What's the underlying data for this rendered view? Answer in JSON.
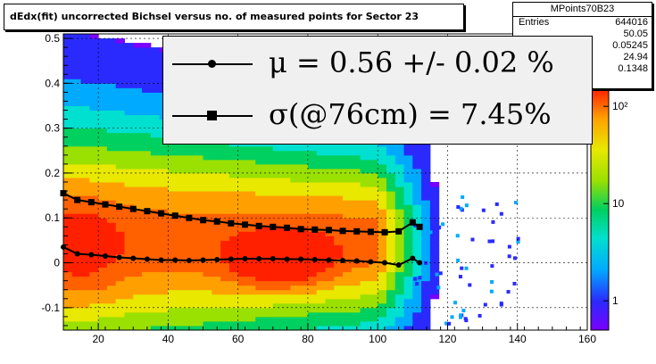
{
  "title": "dEdx(fit) uncorrected Bichsel versus no. of measured points for Sector 23",
  "stats": {
    "name": "MPoints70B23",
    "rows": [
      {
        "key": "Entries",
        "value": "644016"
      },
      {
        "key": "",
        "value": "50.05"
      },
      {
        "key": "",
        "value": "0.05245"
      },
      {
        "key": "",
        "value": "24.94"
      },
      {
        "key": "",
        "value": "0.1348"
      }
    ]
  },
  "legend": [
    {
      "label": "μ  =  0.56 +/-  0.02 %",
      "marker": "circle"
    },
    {
      "label": "σ(@76cm) =  7.45%",
      "marker": "square"
    }
  ],
  "chart_data": {
    "type": "heatmap",
    "title": "dEdx(fit) uncorrected Bichsel versus no. of measured points for Sector 23",
    "xlim": [
      10,
      160
    ],
    "ylim": [
      -0.15,
      0.51
    ],
    "xticks": [
      20,
      40,
      60,
      80,
      100,
      120,
      140,
      160
    ],
    "yticks": [
      -0.1,
      0,
      0.1,
      0.2,
      0.3,
      0.4,
      0.5
    ],
    "ytick_labels": [
      "-0.1",
      "0",
      "0.1",
      "0.2",
      "0.3",
      "0.4",
      "0.5"
    ],
    "colorbar": {
      "scale": "log",
      "tick_labels": [
        "1",
        "10",
        "10²"
      ],
      "tick_values": [
        1,
        10,
        100
      ]
    },
    "grid": true,
    "series": [
      {
        "name": "μ",
        "marker": "circle",
        "x": [
          10,
          14,
          18,
          22,
          26,
          30,
          34,
          38,
          42,
          46,
          50,
          54,
          58,
          62,
          66,
          70,
          74,
          78,
          82,
          86,
          90,
          94,
          98,
          102,
          106,
          110,
          112
        ],
        "y": [
          0.035,
          0.02,
          0.018,
          0.015,
          0.012,
          0.01,
          0.008,
          0.006,
          0.006,
          0.005,
          0.006,
          0.007,
          0.008,
          0.009,
          0.009,
          0.009,
          0.008,
          0.008,
          0.007,
          0.006,
          0.005,
          0.004,
          0.002,
          0.0,
          -0.005,
          0.01,
          0.0
        ]
      },
      {
        "name": "σ(@76cm)",
        "marker": "square",
        "x": [
          10,
          14,
          18,
          22,
          26,
          30,
          34,
          38,
          42,
          46,
          50,
          54,
          58,
          62,
          66,
          70,
          74,
          78,
          82,
          86,
          90,
          94,
          98,
          102,
          106,
          110,
          112
        ],
        "y": [
          0.155,
          0.14,
          0.135,
          0.13,
          0.125,
          0.12,
          0.115,
          0.11,
          0.105,
          0.1,
          0.095,
          0.092,
          0.088,
          0.085,
          0.082,
          0.08,
          0.078,
          0.075,
          0.074,
          0.073,
          0.071,
          0.07,
          0.069,
          0.068,
          0.07,
          0.09,
          0.08
        ]
      }
    ]
  }
}
